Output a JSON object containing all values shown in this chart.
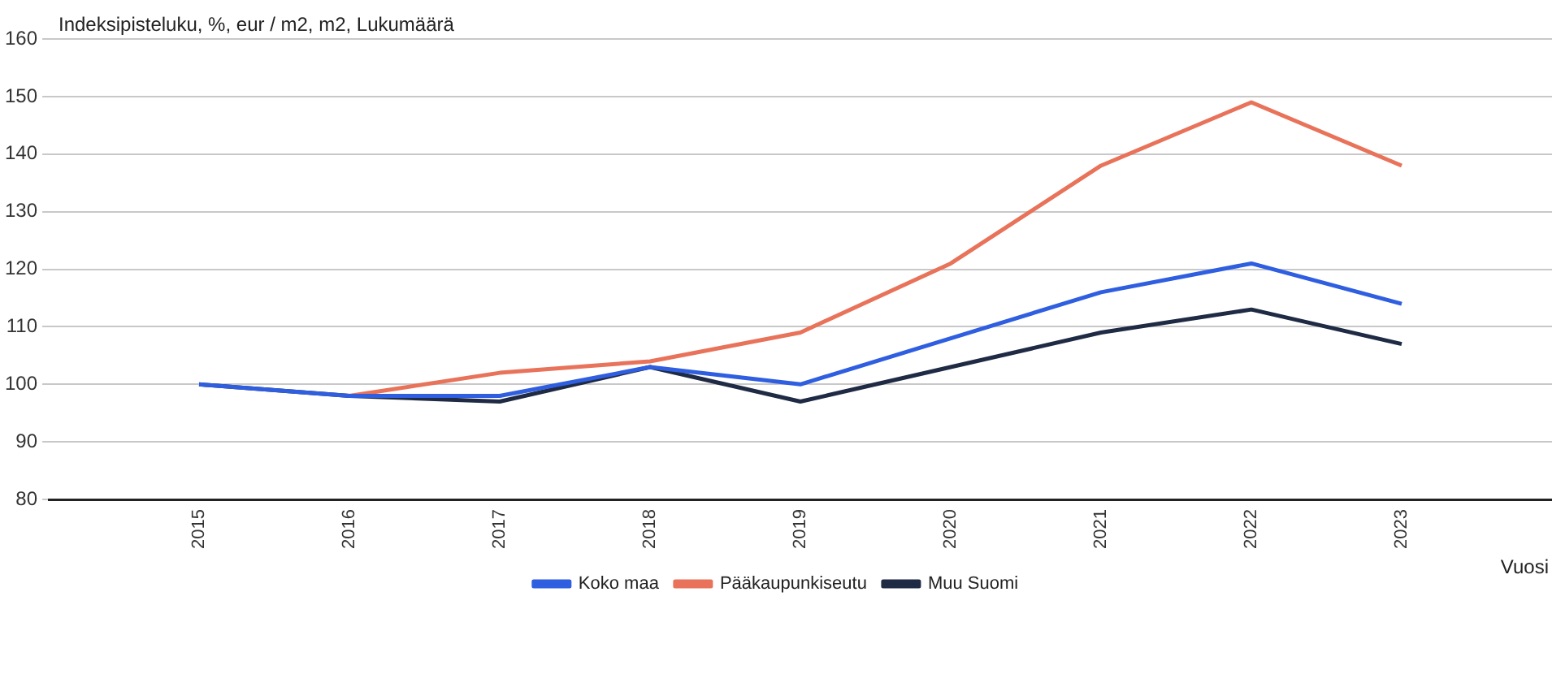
{
  "chart_data": {
    "type": "line",
    "ylabel": "Indeksipisteluku, %, eur / m2, m2, Lukumäärä",
    "xlabel": "Vuosi",
    "categories": [
      "2015",
      "2016",
      "2017",
      "2018",
      "2019",
      "2020",
      "2021",
      "2022",
      "2023"
    ],
    "series": [
      {
        "name": "Koko maa",
        "color": "#2f5fe0",
        "values": [
          100,
          98,
          98,
          103,
          100,
          108,
          116,
          121,
          114
        ]
      },
      {
        "name": "Pääkaupunkiseutu",
        "color": "#e8735a",
        "values": [
          null,
          98,
          102,
          104,
          109,
          121,
          138,
          149,
          138
        ]
      },
      {
        "name": "Muu Suomi",
        "color": "#1f2a44",
        "values": [
          100,
          98,
          97,
          103,
          97,
          103,
          109,
          113,
          107
        ]
      }
    ],
    "ylim": [
      80,
      160
    ],
    "yticks": [
      80,
      90,
      100,
      110,
      120,
      130,
      140,
      150,
      160
    ],
    "grid": "y",
    "legend": "bottom",
    "marker": "none",
    "line_style": "solid"
  }
}
